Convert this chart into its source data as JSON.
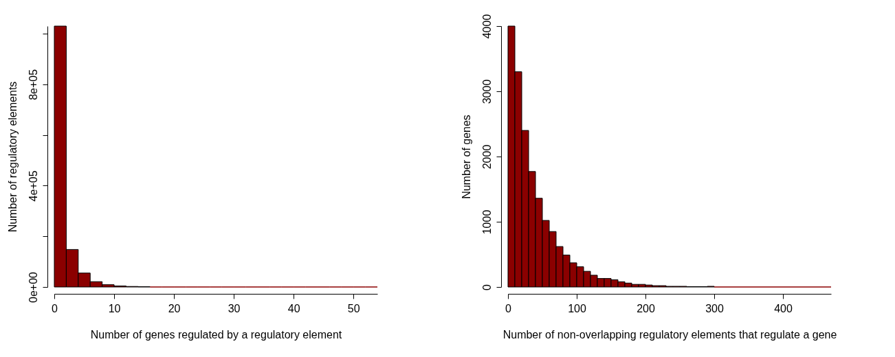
{
  "chart_data": [
    {
      "type": "histogram",
      "xlabel": "Number of genes regulated by a regulatory element",
      "ylabel": "Number of regulatory elements",
      "color": "#8b0000",
      "bins": [
        0,
        2,
        4,
        6,
        8,
        10,
        12,
        14,
        16,
        18,
        20,
        22,
        24,
        26,
        28,
        30,
        32,
        34,
        36,
        38,
        40,
        42,
        44,
        46,
        48,
        50,
        52,
        54
      ],
      "values": [
        1030000,
        148000,
        55000,
        21000,
        9000,
        4000,
        2000,
        1000,
        0,
        0,
        0,
        0,
        0,
        0,
        0,
        0,
        0,
        0,
        0,
        0,
        0,
        0,
        0,
        0,
        0,
        0,
        0
      ],
      "xlim": [
        0,
        54
      ],
      "xticks": [
        0,
        10,
        20,
        30,
        40,
        50
      ],
      "ylim": [
        0,
        1030000
      ],
      "yticks": [
        {
          "value": 0,
          "label": "0e+00"
        },
        {
          "value": 200000,
          "label": null
        },
        {
          "value": 400000,
          "label": "4e+05"
        },
        {
          "value": 600000,
          "label": null
        },
        {
          "value": 800000,
          "label": "8e+05"
        },
        {
          "value": 1000000,
          "label": null
        }
      ]
    },
    {
      "type": "histogram",
      "xlabel": "Number of non-overlapping regulatory elements that regulate a gene",
      "ylabel": "Number of genes",
      "color": "#8b0000",
      "bins": [
        0,
        10,
        20,
        30,
        40,
        50,
        60,
        70,
        80,
        90,
        100,
        110,
        120,
        130,
        140,
        150,
        160,
        170,
        180,
        190,
        200,
        210,
        220,
        230,
        240,
        250,
        260,
        270,
        280,
        290,
        300,
        310,
        320,
        330,
        340,
        350,
        360,
        370,
        380,
        390,
        400,
        410,
        420,
        430,
        440,
        450,
        460,
        470
      ],
      "values": [
        4000,
        3300,
        2400,
        1770,
        1360,
        1020,
        850,
        620,
        490,
        370,
        310,
        240,
        180,
        130,
        130,
        110,
        80,
        60,
        40,
        40,
        30,
        20,
        20,
        10,
        10,
        10,
        5,
        5,
        5,
        10,
        0,
        0,
        0,
        0,
        0,
        0,
        0,
        0,
        0,
        0,
        0,
        0,
        0,
        0,
        0,
        0,
        0
      ],
      "xlim": [
        0,
        470
      ],
      "xticks": [
        0,
        100,
        200,
        300,
        400
      ],
      "ylim": [
        0,
        4000
      ],
      "yticks": [
        0,
        1000,
        2000,
        3000,
        4000
      ]
    }
  ]
}
